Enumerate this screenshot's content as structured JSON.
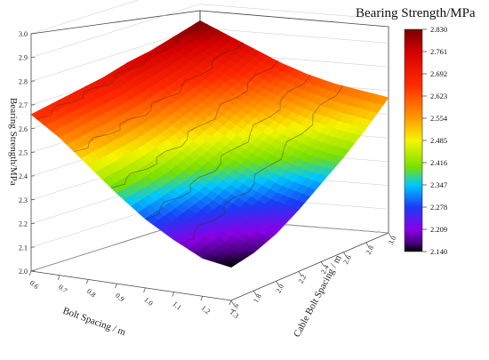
{
  "chart_data": {
    "type": "surface3d",
    "colorbar_title": "Bearing Strength/MPa",
    "colorbar_ticks": [
      "2.830",
      "2.761",
      "2.692",
      "2.623",
      "2.554",
      "2.485",
      "2.416",
      "2.347",
      "2.278",
      "2.209",
      "2.140"
    ],
    "colorbar_range": [
      2.14,
      2.83
    ],
    "colorbar_colors": [
      "#000000",
      "#4b0082",
      "#8a00e6",
      "#1a3cf5",
      "#00c8ff",
      "#00e070",
      "#7ae000",
      "#f5f500",
      "#ff9a00",
      "#ff2a00",
      "#d40000",
      "#780000"
    ],
    "xlabel": "Bolt Spacing / m",
    "ylabel": "Cable Bolt Spacing / m",
    "zlabel": "Bearing Strength/MPa",
    "x_ticks": [
      "0.6",
      "0.7",
      "0.8",
      "0.9",
      "1.0",
      "1.1",
      "1.2",
      "1.3"
    ],
    "y_ticks": [
      "1.6",
      "1.8",
      "2.0",
      "2.2",
      "2.4",
      "2.6",
      "2.8",
      "3.0"
    ],
    "z_ticks": [
      "2.0",
      "2.1",
      "2.2",
      "2.3",
      "2.4",
      "2.5",
      "2.6",
      "2.7",
      "2.8",
      "2.9",
      "3.0"
    ],
    "xlim": [
      0.6,
      1.3
    ],
    "ylim": [
      1.6,
      3.0
    ],
    "zlim": [
      2.0,
      3.0
    ],
    "grid": true,
    "surface_samples": {
      "x": [
        0.6,
        0.7,
        0.8,
        0.9,
        1.0,
        1.1,
        1.2,
        1.3
      ],
      "y": [
        1.6,
        1.8,
        2.0,
        2.2,
        2.4,
        2.6,
        2.8,
        3.0
      ],
      "z": [
        [
          2.83,
          2.8,
          2.77,
          2.75,
          2.72,
          2.7,
          2.68,
          2.66
        ],
        [
          2.78,
          2.74,
          2.7,
          2.67,
          2.64,
          2.62,
          2.6,
          2.58
        ],
        [
          2.73,
          2.68,
          2.63,
          2.59,
          2.55,
          2.52,
          2.5,
          2.48
        ],
        [
          2.68,
          2.62,
          2.57,
          2.52,
          2.47,
          2.43,
          2.4,
          2.38
        ],
        [
          2.64,
          2.57,
          2.51,
          2.45,
          2.4,
          2.35,
          2.32,
          2.29
        ],
        [
          2.61,
          2.53,
          2.46,
          2.4,
          2.34,
          2.29,
          2.25,
          2.22
        ],
        [
          2.59,
          2.5,
          2.42,
          2.36,
          2.29,
          2.24,
          2.19,
          2.16
        ],
        [
          2.57,
          2.48,
          2.4,
          2.33,
          2.26,
          2.2,
          2.16,
          2.14
        ]
      ]
    }
  }
}
